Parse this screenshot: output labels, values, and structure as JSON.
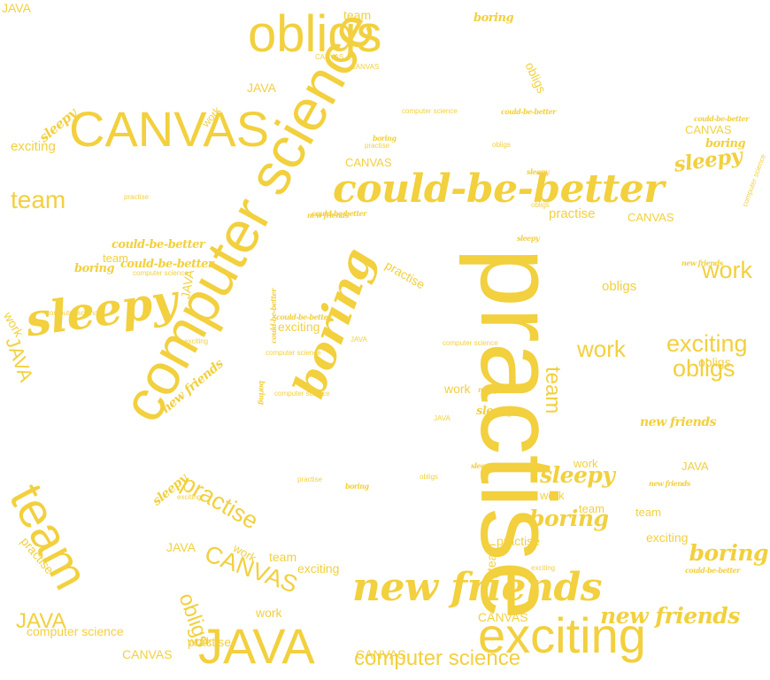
{
  "colors": {
    "text": "#f2d03e",
    "background": "#ffffff"
  },
  "words": [
    {
      "text": "obligs",
      "font": "sans",
      "size": 58,
      "rotate": 0
    },
    {
      "text": "team",
      "font": "sans",
      "size": 14,
      "rotate": 0
    },
    {
      "text": "boring",
      "font": "bold",
      "size": 13,
      "rotate": 0
    },
    {
      "text": "CANVAS",
      "font": "sans",
      "size": 8,
      "rotate": 0
    },
    {
      "text": "CANVAS",
      "font": "sans",
      "size": 8,
      "rotate": 0
    },
    {
      "text": "JAVA",
      "font": "sans",
      "size": 14,
      "rotate": 0
    },
    {
      "text": "obligs",
      "font": "sans",
      "size": 14,
      "rotate": 65
    },
    {
      "text": "CANVAS",
      "font": "sans",
      "size": 56,
      "rotate": 0
    },
    {
      "text": "sleepy",
      "font": "bold",
      "size": 15,
      "rotate": -40
    },
    {
      "text": "work",
      "font": "sans",
      "size": 12,
      "rotate": -50
    },
    {
      "text": "computer science",
      "font": "sans",
      "size": 8,
      "rotate": 0
    },
    {
      "text": "exciting",
      "font": "sans",
      "size": 15,
      "rotate": 0
    },
    {
      "text": "computer science",
      "font": "sans",
      "size": 66,
      "rotate": -61
    },
    {
      "text": "could-be-better",
      "font": "bold",
      "size": 8,
      "rotate": 0
    },
    {
      "text": "boring",
      "font": "bold",
      "size": 8,
      "rotate": 0
    },
    {
      "text": "practise",
      "font": "sans",
      "size": 8,
      "rotate": 0
    },
    {
      "text": "obligs",
      "font": "sans",
      "size": 8,
      "rotate": 0
    },
    {
      "text": "could-be-better",
      "font": "bold",
      "size": 8,
      "rotate": 0
    },
    {
      "text": "CANVAS",
      "font": "sans",
      "size": 13,
      "rotate": 0
    },
    {
      "text": "could-be-better",
      "font": "bold",
      "size": 44,
      "rotate": 0
    },
    {
      "text": "sleepy",
      "font": "bold",
      "size": 8,
      "rotate": 0
    },
    {
      "text": "obligs",
      "font": "sans",
      "size": 8,
      "rotate": 0
    },
    {
      "text": "practise",
      "font": "sans",
      "size": 15,
      "rotate": 0
    },
    {
      "text": "CANVAS",
      "font": "sans",
      "size": 13,
      "rotate": 0
    },
    {
      "text": "could-be-better",
      "font": "bold",
      "size": 8,
      "rotate": 0
    },
    {
      "text": "CANVAS",
      "font": "sans",
      "size": 13,
      "rotate": 0
    },
    {
      "text": "boring",
      "font": "bold",
      "size": 13,
      "rotate": 0
    },
    {
      "text": "sleepy",
      "font": "bold",
      "size": 23,
      "rotate": -8
    },
    {
      "text": "computer science",
      "font": "sans",
      "size": 8,
      "rotate": -70
    },
    {
      "text": "team",
      "font": "sans",
      "size": 28,
      "rotate": 0
    },
    {
      "text": "practise",
      "font": "sans",
      "size": 8,
      "rotate": 0
    },
    {
      "text": "new friends",
      "font": "bold",
      "size": 8,
      "rotate": 0
    },
    {
      "text": "sleepy",
      "font": "bold",
      "size": 8,
      "rotate": 0
    },
    {
      "text": "new friends",
      "font": "bold",
      "size": 8,
      "rotate": 0
    },
    {
      "text": "work",
      "font": "sans",
      "size": 27,
      "rotate": 0
    },
    {
      "text": "could-be-better",
      "font": "bold",
      "size": 13,
      "rotate": 0
    },
    {
      "text": "team",
      "font": "sans",
      "size": 13,
      "rotate": 0
    },
    {
      "text": "could-be-better",
      "font": "bold",
      "size": 13,
      "rotate": 0
    },
    {
      "text": "boring",
      "font": "bold",
      "size": 13,
      "rotate": 0
    },
    {
      "text": "computer science",
      "font": "sans",
      "size": 8,
      "rotate": 0
    },
    {
      "text": "sleepy",
      "font": "bold",
      "size": 50,
      "rotate": -8
    },
    {
      "text": "JAVA",
      "font": "sans",
      "size": 14,
      "rotate": -80
    },
    {
      "text": "practise",
      "font": "sans",
      "size": 14,
      "rotate": 30
    },
    {
      "text": "practise",
      "font": "sans",
      "size": 120,
      "rotate": 90
    },
    {
      "text": "obligs",
      "font": "sans",
      "size": 15,
      "rotate": 0
    },
    {
      "text": "work",
      "font": "sans",
      "size": 14,
      "rotate": 60
    },
    {
      "text": "computer science",
      "font": "sans",
      "size": 8,
      "rotate": 0
    },
    {
      "text": "JAVA",
      "font": "sans",
      "size": 22,
      "rotate": 70
    },
    {
      "text": "could-be-better",
      "font": "bold",
      "size": 8,
      "rotate": 0
    },
    {
      "text": "exciting",
      "font": "sans",
      "size": 14,
      "rotate": 0
    },
    {
      "text": "boring",
      "font": "bold",
      "size": 48,
      "rotate": -70
    },
    {
      "text": "computer science",
      "font": "sans",
      "size": 8,
      "rotate": 0
    },
    {
      "text": "JAVA",
      "font": "sans",
      "size": 8,
      "rotate": 0
    },
    {
      "text": "could-be-better",
      "font": "bold",
      "size": 8,
      "rotate": -90
    },
    {
      "text": "exciting",
      "font": "sans",
      "size": 8,
      "rotate": 0
    },
    {
      "text": "new friends",
      "font": "bold",
      "size": 14,
      "rotate": -40
    },
    {
      "text": "computer science",
      "font": "sans",
      "size": 8,
      "rotate": 0
    },
    {
      "text": "work",
      "font": "sans",
      "size": 26,
      "rotate": 0
    },
    {
      "text": "exciting",
      "font": "sans",
      "size": 27,
      "rotate": 0
    },
    {
      "text": "team",
      "font": "sans",
      "size": 24,
      "rotate": 90
    },
    {
      "text": "obligs",
      "font": "sans",
      "size": 27,
      "rotate": 0
    },
    {
      "text": "obligs",
      "font": "sans",
      "size": 14,
      "rotate": 0
    },
    {
      "text": "work",
      "font": "sans",
      "size": 14,
      "rotate": 0
    },
    {
      "text": "new friends",
      "font": "bold",
      "size": 8,
      "rotate": 0
    },
    {
      "text": "sleepy",
      "font": "bold",
      "size": 13,
      "rotate": 0
    },
    {
      "text": "JAVA",
      "font": "sans",
      "size": 8,
      "rotate": 0
    },
    {
      "text": "computer science",
      "font": "sans",
      "size": 8,
      "rotate": 0
    },
    {
      "text": "boring",
      "font": "bold",
      "size": 8,
      "rotate": 90
    },
    {
      "text": "new friends",
      "font": "bold",
      "size": 14,
      "rotate": 0
    },
    {
      "text": "work",
      "font": "sans",
      "size": 13,
      "rotate": 0
    },
    {
      "text": "sleepy",
      "font": "bold",
      "size": 25,
      "rotate": 0
    },
    {
      "text": "work",
      "font": "sans",
      "size": 13,
      "rotate": 0
    },
    {
      "text": "JAVA",
      "font": "sans",
      "size": 13,
      "rotate": 0
    },
    {
      "text": "team",
      "font": "sans",
      "size": 13,
      "rotate": 0
    },
    {
      "text": "boring",
      "font": "bold",
      "size": 25,
      "rotate": 0
    },
    {
      "text": "team",
      "font": "sans",
      "size": 13,
      "rotate": 0
    },
    {
      "text": "new friends",
      "font": "bold",
      "size": 8,
      "rotate": 0
    },
    {
      "text": "sleepy",
      "font": "bold",
      "size": 8,
      "rotate": 0
    },
    {
      "text": "obligs",
      "font": "sans",
      "size": 8,
      "rotate": 0
    },
    {
      "text": "practise",
      "font": "sans",
      "size": 8,
      "rotate": 0
    },
    {
      "text": "boring",
      "font": "bold",
      "size": 8,
      "rotate": 0
    },
    {
      "text": "sleepy",
      "font": "bold",
      "size": 14,
      "rotate": -40
    },
    {
      "text": "practise",
      "font": "sans",
      "size": 27,
      "rotate": 30
    },
    {
      "text": "exciting",
      "font": "sans",
      "size": 8,
      "rotate": 0
    },
    {
      "text": "team",
      "font": "sans",
      "size": 56,
      "rotate": 62
    },
    {
      "text": "practise",
      "font": "sans",
      "size": 14,
      "rotate": 50
    },
    {
      "text": "work",
      "font": "sans",
      "size": 13,
      "rotate": 30
    },
    {
      "text": "CANVAS",
      "font": "sans",
      "size": 27,
      "rotate": 20
    },
    {
      "text": "JAVA",
      "font": "sans",
      "size": 14,
      "rotate": 0
    },
    {
      "text": "team",
      "font": "sans",
      "size": 14,
      "rotate": 0
    },
    {
      "text": "exciting",
      "font": "sans",
      "size": 14,
      "rotate": 0
    },
    {
      "text": "new friends",
      "font": "bold",
      "size": 44,
      "rotate": 0
    },
    {
      "text": "practise",
      "font": "sans",
      "size": 14,
      "rotate": 0
    },
    {
      "text": "team",
      "font": "sans",
      "size": 14,
      "rotate": -90
    },
    {
      "text": "exciting",
      "font": "sans",
      "size": 8,
      "rotate": 0
    },
    {
      "text": "exciting",
      "font": "sans",
      "size": 14,
      "rotate": 0
    },
    {
      "text": "boring",
      "font": "bold",
      "size": 25,
      "rotate": 0
    },
    {
      "text": "could-be-better",
      "font": "bold",
      "size": 8,
      "rotate": 0
    },
    {
      "text": "obligs",
      "font": "sans",
      "size": 24,
      "rotate": 70
    },
    {
      "text": "new friends",
      "font": "bold",
      "size": 25,
      "rotate": 0
    },
    {
      "text": "work",
      "font": "sans",
      "size": 14,
      "rotate": 0
    },
    {
      "text": "exciting",
      "font": "sans",
      "size": 56,
      "rotate": 0
    },
    {
      "text": "JAVA",
      "font": "sans",
      "size": 56,
      "rotate": 0
    },
    {
      "text": "practise",
      "font": "sans",
      "size": 14,
      "rotate": 0
    },
    {
      "text": "CANVAS",
      "font": "sans",
      "size": 14,
      "rotate": 0
    },
    {
      "text": "computer science",
      "font": "sans",
      "size": 24,
      "rotate": 0
    },
    {
      "text": "JAVA",
      "font": "sans",
      "size": 24,
      "rotate": 0
    },
    {
      "text": "computer science",
      "font": "sans",
      "size": 14,
      "rotate": 0
    },
    {
      "text": "CANVAS",
      "font": "sans",
      "size": 14,
      "rotate": 0
    },
    {
      "text": "work",
      "font": "sans",
      "size": 13,
      "rotate": 0
    },
    {
      "text": "CANVAS",
      "font": "sans",
      "size": 14,
      "rotate": 0
    },
    {
      "text": "JAVA",
      "font": "sans",
      "size": 14,
      "rotate": 0
    }
  ]
}
